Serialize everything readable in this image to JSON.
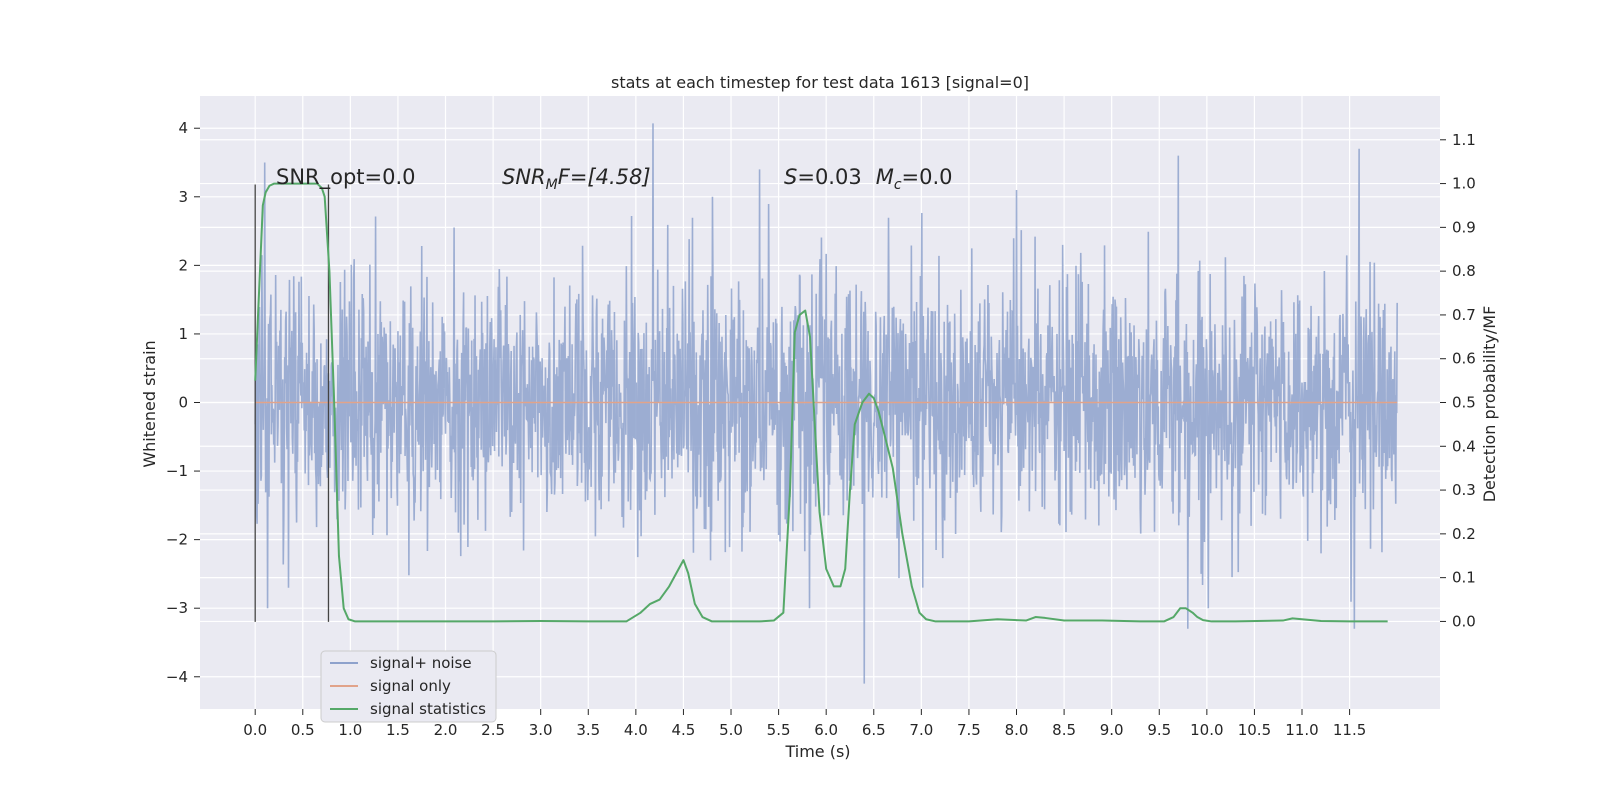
{
  "chart_data": {
    "type": "line",
    "title": "stats at each timestep for test data 1613 [signal=0]",
    "xlabel": "Time (s)",
    "ylabel_left": "Whitened strain",
    "ylabel_right": "Detection probability/MF",
    "xlim": [
      -0.58,
      12.45
    ],
    "ylim_left": [
      -4.47,
      4.47
    ],
    "ylim_right": [
      -0.2,
      1.2
    ],
    "x_ticks": [
      "0.0",
      "0.5",
      "1.0",
      "1.5",
      "2.0",
      "2.5",
      "3.0",
      "3.5",
      "4.0",
      "4.5",
      "5.0",
      "5.5",
      "6.0",
      "6.5",
      "7.0",
      "7.5",
      "8.0",
      "8.5",
      "9.0",
      "9.5",
      "10.0",
      "10.5",
      "11.0",
      "11.5"
    ],
    "y_ticks_left": [
      "−4",
      "−3",
      "−2",
      "−1",
      "0",
      "1",
      "2",
      "3",
      "4"
    ],
    "y_ticks_right": [
      "0.0",
      "0.1",
      "0.2",
      "0.3",
      "0.4",
      "0.5",
      "0.6",
      "0.7",
      "0.8",
      "0.9",
      "1.0",
      "1.1"
    ],
    "grid": true,
    "legend_position": "lower-left",
    "annotations": {
      "snr_opt": "SNR_opt=0.0",
      "snr_mf_prefix": "SNR",
      "snr_mf_sub": "M",
      "snr_mf_rest": "F=[4.58]",
      "s_label": "S",
      "s_value": "=0.03",
      "mc_label": "M",
      "mc_sub": "c",
      "mc_value": "=0.0"
    },
    "vertical_lines_x": [
      0.0,
      0.77
    ],
    "series": [
      {
        "name": "signal+ noise",
        "color": "#8ea2cc",
        "axis": "left",
        "t_start": 0.0,
        "t_end": 12.0,
        "sigma": 0.9,
        "peaks": [
          {
            "x": 0.1,
            "y": 3.5
          },
          {
            "x": 4.18,
            "y": 4.07
          },
          {
            "x": 6.4,
            "y": -4.1
          },
          {
            "x": 9.8,
            "y": -3.3
          },
          {
            "x": 11.55,
            "y": -3.3
          },
          {
            "x": 11.6,
            "y": 3.7
          },
          {
            "x": 8.0,
            "y": 3.1
          },
          {
            "x": 9.7,
            "y": 3.6
          },
          {
            "x": 5.3,
            "y": 3.4
          }
        ]
      },
      {
        "name": "signal only",
        "color": "#e1a38a",
        "axis": "left",
        "x": [
          0.0,
          12.0
        ],
        "y": [
          0.0,
          0.0
        ]
      },
      {
        "name": "signal statistics",
        "color": "#55a868",
        "axis": "right",
        "x": [
          0.0,
          0.05,
          0.08,
          0.11,
          0.15,
          0.2,
          0.3,
          0.4,
          0.5,
          0.6,
          0.65,
          0.7,
          0.73,
          0.78,
          0.83,
          0.88,
          0.93,
          0.98,
          1.05,
          1.5,
          2.0,
          2.5,
          3.0,
          3.5,
          3.9,
          4.05,
          4.15,
          4.25,
          4.35,
          4.45,
          4.5,
          4.55,
          4.62,
          4.7,
          4.8,
          5.0,
          5.3,
          5.45,
          5.55,
          5.62,
          5.67,
          5.72,
          5.78,
          5.83,
          5.88,
          5.93,
          6.0,
          6.08,
          6.15,
          6.2,
          6.25,
          6.3,
          6.38,
          6.45,
          6.5,
          6.55,
          6.62,
          6.7,
          6.8,
          6.9,
          6.98,
          7.05,
          7.15,
          7.3,
          7.5,
          7.8,
          8.1,
          8.2,
          8.3,
          8.5,
          8.9,
          9.3,
          9.55,
          9.65,
          9.72,
          9.78,
          9.85,
          9.9,
          9.96,
          10.05,
          10.3,
          10.8,
          10.9,
          11.0,
          11.2,
          11.5,
          11.9
        ],
        "y": [
          0.55,
          0.8,
          0.95,
          0.98,
          0.995,
          1.0,
          1.0,
          1.0,
          1.0,
          1.0,
          1.0,
          0.99,
          0.97,
          0.8,
          0.5,
          0.15,
          0.03,
          0.005,
          0.0,
          0.0,
          0.0,
          0.0,
          0.001,
          0.0,
          0.0,
          0.02,
          0.04,
          0.05,
          0.08,
          0.12,
          0.14,
          0.11,
          0.04,
          0.01,
          0.0,
          0.0,
          0.0,
          0.002,
          0.02,
          0.3,
          0.66,
          0.7,
          0.71,
          0.65,
          0.45,
          0.25,
          0.12,
          0.08,
          0.08,
          0.12,
          0.3,
          0.45,
          0.5,
          0.52,
          0.51,
          0.48,
          0.42,
          0.35,
          0.2,
          0.08,
          0.02,
          0.005,
          0.0,
          0.0,
          0.0,
          0.005,
          0.002,
          0.01,
          0.008,
          0.002,
          0.002,
          0.0,
          0.0,
          0.01,
          0.03,
          0.03,
          0.02,
          0.01,
          0.003,
          0.0,
          0.0,
          0.002,
          0.007,
          0.005,
          0.001,
          0.0,
          0.0
        ]
      }
    ]
  }
}
